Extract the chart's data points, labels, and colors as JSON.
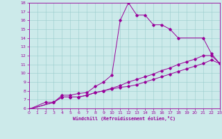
{
  "xlabel": "Windchill (Refroidissement éolien,°C)",
  "bg_color": "#cceaea",
  "line_color": "#990099",
  "grid_color": "#99cccc",
  "xmin": 0,
  "xmax": 23,
  "ymin": 6,
  "ymax": 18,
  "line1_x": [
    0,
    2,
    3,
    4,
    5,
    6,
    7,
    8,
    9,
    10,
    11,
    12,
    13,
    14,
    15,
    16,
    17,
    18,
    21,
    22,
    23
  ],
  "line1_y": [
    5.9,
    6.7,
    6.7,
    7.5,
    7.5,
    7.7,
    7.8,
    8.5,
    9.0,
    9.8,
    16.0,
    18.0,
    16.6,
    16.6,
    15.5,
    15.5,
    15.0,
    14.0,
    14.0,
    12.2,
    11.1
  ],
  "line2_x": [
    0,
    3,
    4,
    5,
    6,
    7,
    8,
    9,
    10,
    11,
    12,
    13,
    14,
    15,
    16,
    17,
    18,
    19,
    20,
    21,
    22,
    23
  ],
  "line2_y": [
    5.9,
    6.7,
    7.3,
    7.3,
    7.3,
    7.5,
    7.8,
    8.0,
    8.2,
    8.4,
    8.5,
    8.7,
    9.0,
    9.3,
    9.6,
    9.9,
    10.2,
    10.5,
    10.8,
    11.1,
    11.5,
    11.1
  ],
  "line3_x": [
    0,
    3,
    4,
    5,
    6,
    7,
    8,
    9,
    10,
    11,
    12,
    13,
    14,
    15,
    16,
    17,
    18,
    19,
    20,
    21,
    22,
    23
  ],
  "line3_y": [
    5.9,
    6.7,
    7.3,
    7.3,
    7.3,
    7.5,
    7.8,
    8.0,
    8.3,
    8.6,
    9.0,
    9.3,
    9.6,
    9.9,
    10.3,
    10.6,
    11.0,
    11.3,
    11.6,
    12.0,
    12.0,
    11.1
  ]
}
